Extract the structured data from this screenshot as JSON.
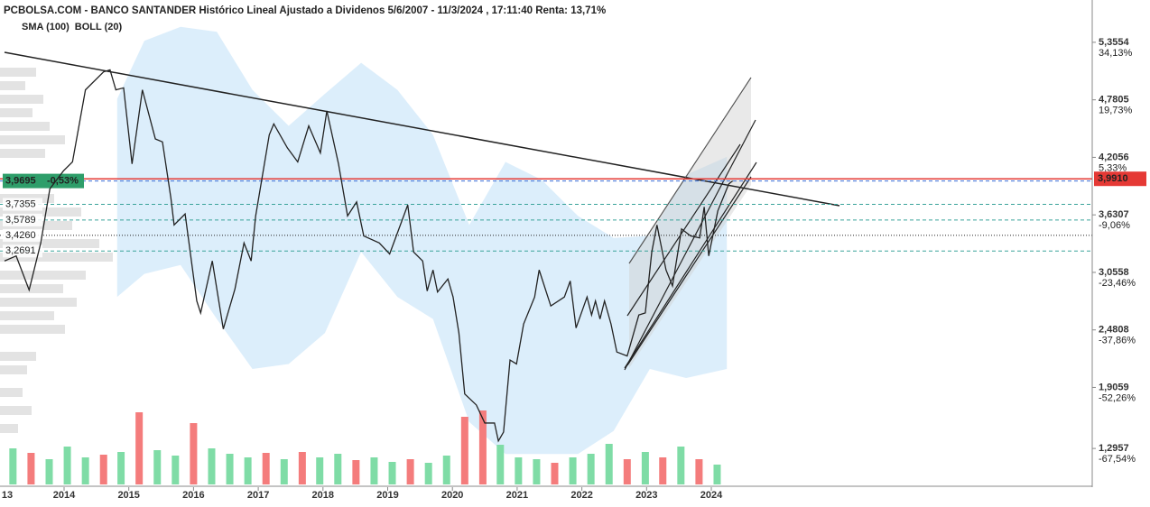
{
  "chart_data": {
    "type": "line",
    "title": "PCBOLSA.COM - BANCO SANTANDER Histórico Lineal Ajustado a Dividenos 5/6/2007 - 11/3/2024 , 17:11:40 Renta: 13,71%",
    "legend": [
      "SMA (100)",
      "BOLL (20)"
    ],
    "legend_color": "#a9d3f0",
    "line_color": "#222222",
    "x": [
      2013.08,
      2013.26,
      2013.46,
      2013.64,
      2013.78,
      2013.99,
      2014.13,
      2014.33,
      2014.61,
      2014.71,
      2014.8,
      2014.92,
      2015.05,
      2015.21,
      2015.41,
      2015.52,
      2015.65,
      2015.7,
      2015.87,
      2016.05,
      2016.11,
      2016.29,
      2016.46,
      2016.64,
      2016.78,
      2016.89,
      2016.96,
      2017.17,
      2017.24,
      2017.45,
      2017.61,
      2017.78,
      2017.96,
      2018.06,
      2018.24,
      2018.38,
      2018.52,
      2018.63,
      2018.87,
      2019.03,
      2019.31,
      2019.4,
      2019.54,
      2019.61,
      2019.7,
      2019.77,
      2019.93,
      2020.01,
      2020.1,
      2020.19,
      2020.37,
      2020.5,
      2020.65,
      2020.71,
      2020.79,
      2020.89,
      2020.99,
      2021.1,
      2021.27,
      2021.34,
      2021.52,
      2021.73,
      2021.82,
      2021.91,
      2022.08,
      2022.15,
      2022.21,
      2022.28,
      2022.35,
      2022.45,
      2022.54,
      2022.7,
      2022.88,
      2022.98,
      2023.08,
      2023.16,
      2023.3,
      2023.4,
      2023.54,
      2023.68,
      2023.82,
      2023.89,
      2023.96,
      2024.1,
      2024.27,
      2024.33
    ],
    "values": [
      3.17,
      3.22,
      2.88,
      3.35,
      3.89,
      4.07,
      4.16,
      4.88,
      5.06,
      5.08,
      4.88,
      4.9,
      4.14,
      4.88,
      4.39,
      4.36,
      3.8,
      3.53,
      3.64,
      2.77,
      2.65,
      3.17,
      2.49,
      2.89,
      3.35,
      3.17,
      3.62,
      4.43,
      4.54,
      4.3,
      4.16,
      4.52,
      4.25,
      4.67,
      4.14,
      3.62,
      3.76,
      3.42,
      3.35,
      3.24,
      3.73,
      3.26,
      3.17,
      2.87,
      3.08,
      2.86,
      2.99,
      2.81,
      2.45,
      1.84,
      1.73,
      1.55,
      1.55,
      1.37,
      1.46,
      2.18,
      2.14,
      2.54,
      2.81,
      3.08,
      2.72,
      2.81,
      2.97,
      2.5,
      2.81,
      2.63,
      2.77,
      2.59,
      2.77,
      2.54,
      2.26,
      2.22,
      2.63,
      2.65,
      3.26,
      3.53,
      3.08,
      2.92,
      3.49,
      3.42,
      3.4,
      3.71,
      3.22,
      3.67,
      3.94,
      3.97
    ],
    "band": {
      "color": "#d6ebfa",
      "x": [
        2014.82,
        2015.24,
        2015.8,
        2016.36,
        2016.91,
        2017.47,
        2018.03,
        2018.59,
        2019.15,
        2019.7,
        2020.26,
        2020.82,
        2021.38,
        2021.94,
        2022.49,
        2023.05,
        2023.61,
        2024.24
      ],
      "upper": [
        4.79,
        5.37,
        5.51,
        5.46,
        4.88,
        4.52,
        4.84,
        5.15,
        4.88,
        4.43,
        3.53,
        4.16,
        3.98,
        3.62,
        3.4,
        3.42,
        4.03,
        4.21
      ],
      "lower": [
        2.81,
        3.04,
        3.13,
        2.59,
        2.09,
        2.14,
        2.45,
        3.26,
        2.81,
        2.59,
        1.56,
        1.24,
        1.24,
        1.24,
        1.47,
        2.09,
        2.0,
        2.09
      ]
    },
    "xlim": [
      2013.01,
      2029.885
    ],
    "xticks": [
      {
        "value": 2013,
        "label": "13"
      },
      2014,
      2015,
      2016,
      2017,
      2018,
      2019,
      2020,
      2021,
      2022,
      2023,
      2024
    ],
    "ylim": [
      0.909,
      5.598
    ],
    "yticks": [
      {
        "value": 5.3554,
        "label": "5,3554"
      },
      {
        "value": 4.7805,
        "label": "4,7805"
      },
      {
        "value": 4.2056,
        "label": "4,2056"
      },
      {
        "value": 3.6307,
        "label": "3,6307"
      },
      {
        "value": 3.0558,
        "label": "3,0558"
      },
      {
        "value": 2.4808,
        "label": "2,4808"
      },
      {
        "value": 1.9059,
        "label": "1,9059"
      },
      {
        "value": 1.2957,
        "label": "1,2957"
      }
    ],
    "ytick_changes": [
      "34,13%",
      "19,73%",
      "5,33%",
      "-9,06%",
      "-23,46%",
      "-37,86%",
      "-52,26%",
      "-67,54%"
    ],
    "up_color": "#2e9e5e",
    "down_color": "#e04848",
    "reference": {
      "value": 3.991,
      "label": "3,9910",
      "color": "#e53935"
    },
    "last": {
      "value": 3.9695,
      "label": "3,9695",
      "change": "-0,53%",
      "color": "#2e9e6a",
      "line_color": "#3a6fd8"
    },
    "levels": [
      {
        "value": 3.7355,
        "label": "3,7355",
        "color": "#3aa39a",
        "dash": "4 3"
      },
      {
        "value": 3.5789,
        "label": "3,5789",
        "color": "#3aa39a",
        "dash": "4 3"
      },
      {
        "value": 3.426,
        "label": "3,4260",
        "color": "#222222",
        "dash": "1 2"
      },
      {
        "value": 3.2691,
        "label": "3,2691",
        "color": "#3aa39a",
        "dash": "4 3"
      }
    ],
    "volume": {
      "ylim": [
        0,
        100
      ],
      "up_color": "#7fdca6",
      "down_color": "#f47c7c",
      "x": [
        2013.21,
        2013.49,
        2013.77,
        2014.05,
        2014.33,
        2014.61,
        2014.88,
        2015.16,
        2015.44,
        2015.72,
        2016.0,
        2016.28,
        2016.56,
        2016.84,
        2017.12,
        2017.4,
        2017.68,
        2017.95,
        2018.23,
        2018.51,
        2018.79,
        2019.07,
        2019.35,
        2019.63,
        2019.91,
        2020.19,
        2020.47,
        2020.74,
        2021.02,
        2021.3,
        2021.58,
        2021.86,
        2022.14,
        2022.42,
        2022.7,
        2022.98,
        2023.25,
        2023.53,
        2023.81,
        2024.09
      ],
      "values": [
        40,
        35,
        28,
        42,
        30,
        33,
        36,
        80,
        38,
        32,
        68,
        40,
        34,
        30,
        35,
        28,
        36,
        30,
        34,
        27,
        30,
        25,
        28,
        24,
        32,
        75,
        82,
        44,
        30,
        28,
        24,
        30,
        34,
        45,
        28,
        36,
        30,
        42,
        28,
        22
      ],
      "up": [
        true,
        false,
        true,
        true,
        true,
        false,
        true,
        false,
        true,
        true,
        false,
        true,
        true,
        true,
        false,
        true,
        false,
        true,
        true,
        false,
        true,
        true,
        false,
        true,
        true,
        false,
        false,
        true,
        true,
        true,
        false,
        true,
        true,
        true,
        false,
        true,
        false,
        true,
        false,
        true
      ]
    }
  }
}
